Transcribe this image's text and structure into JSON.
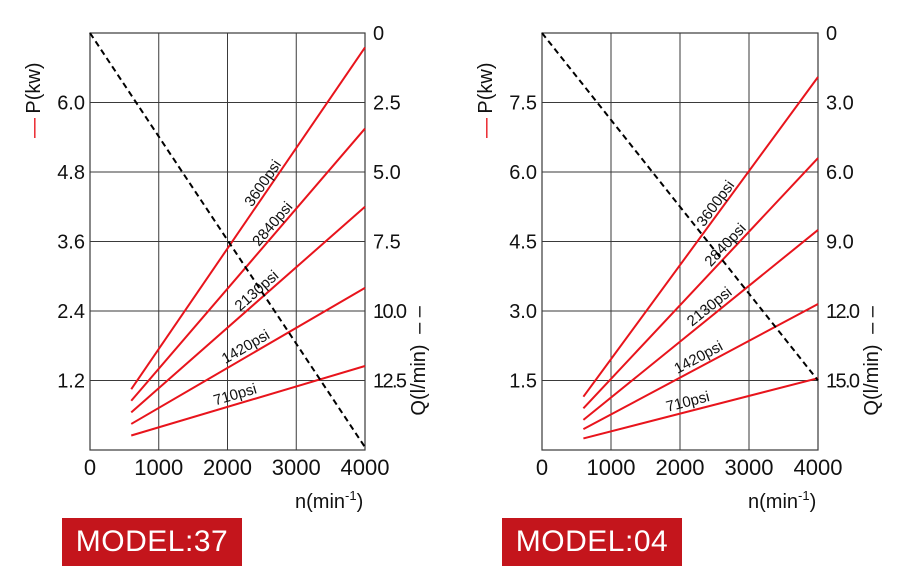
{
  "charts": [
    {
      "model_label": "MODEL:37",
      "chart_data": {
        "type": "line",
        "xlabel_base": "n(min",
        "xlabel_sup": "-1",
        "xlabel_end": ")",
        "ylabel_left": "P(kw)",
        "ylabel_left_marker": "—",
        "ylabel_right": "Q(l/min)",
        "ylabel_right_marker": "– –",
        "xlim": [
          0,
          4000
        ],
        "ylim_left": [
          0,
          7.2
        ],
        "ylim_right": [
          0,
          15
        ],
        "right_axis_inverted": true,
        "x_ticks": [
          "0",
          "1000",
          "2000",
          "3000",
          "4000"
        ],
        "y_left_ticks": [
          {
            "value": 1.2,
            "label": "1.2"
          },
          {
            "value": 2.4,
            "label": "2.4"
          },
          {
            "value": 3.6,
            "label": "3.6"
          },
          {
            "value": 4.8,
            "label": "4.8"
          },
          {
            "value": 6.0,
            "label": "6.0"
          }
        ],
        "y_right_ticks": [
          {
            "value": 0,
            "label": "0"
          },
          {
            "value": 2.5,
            "label": "2.5"
          },
          {
            "value": 5.0,
            "label": "5.0"
          },
          {
            "value": 7.5,
            "label": "7.5"
          },
          {
            "value": 10.0,
            "label": "10.0"
          },
          {
            "value": 12.5,
            "label": "12.5"
          }
        ],
        "grid": true,
        "power_series": [
          {
            "name": "3600psi",
            "x": [
              600,
              4000
            ],
            "y": [
              1.05,
              6.95
            ]
          },
          {
            "name": "2840psi",
            "x": [
              600,
              4000
            ],
            "y": [
              0.85,
              5.55
            ]
          },
          {
            "name": "2130psi",
            "x": [
              600,
              4000
            ],
            "y": [
              0.65,
              4.2
            ]
          },
          {
            "name": "1420psi",
            "x": [
              600,
              4000
            ],
            "y": [
              0.45,
              2.8
            ]
          },
          {
            "name": "710psi",
            "x": [
              600,
              4000
            ],
            "y": [
              0.25,
              1.45
            ]
          }
        ],
        "flow_series": {
          "x": [
            0,
            4000
          ],
          "q": [
            0,
            14.9
          ]
        },
        "colors": {
          "power": "#e8141c",
          "flow": "#000000",
          "grid": "#3a3a3a"
        }
      }
    },
    {
      "model_label": "MODEL:04",
      "chart_data": {
        "type": "line",
        "xlabel_base": "n(min",
        "xlabel_sup": "-1",
        "xlabel_end": ")",
        "ylabel_left": "P(kw)",
        "ylabel_left_marker": "—",
        "ylabel_right": "Q(l/min)",
        "ylabel_right_marker": "– –",
        "xlim": [
          0,
          4000
        ],
        "ylim_left": [
          0,
          9.0
        ],
        "ylim_right": [
          0,
          18
        ],
        "right_axis_inverted": true,
        "x_ticks": [
          "0",
          "1000",
          "2000",
          "3000",
          "4000"
        ],
        "y_left_ticks": [
          {
            "value": 1.5,
            "label": "1.5"
          },
          {
            "value": 3.0,
            "label": "3.0"
          },
          {
            "value": 4.5,
            "label": "4.5"
          },
          {
            "value": 6.0,
            "label": "6.0"
          },
          {
            "value": 7.5,
            "label": "7.5"
          }
        ],
        "y_right_ticks": [
          {
            "value": 0,
            "label": "0"
          },
          {
            "value": 3.0,
            "label": "3.0"
          },
          {
            "value": 6.0,
            "label": "6.0"
          },
          {
            "value": 9.0,
            "label": "9.0"
          },
          {
            "value": 12.0,
            "label": "12.0"
          },
          {
            "value": 15.0,
            "label": "15.0"
          }
        ],
        "grid": true,
        "power_series": [
          {
            "name": "3600psi",
            "x": [
              600,
              4000
            ],
            "y": [
              1.15,
              8.05
            ]
          },
          {
            "name": "2840psi",
            "x": [
              600,
              4000
            ],
            "y": [
              0.9,
              6.3
            ]
          },
          {
            "name": "2130psi",
            "x": [
              600,
              4000
            ],
            "y": [
              0.65,
              4.75
            ]
          },
          {
            "name": "1420psi",
            "x": [
              600,
              4000
            ],
            "y": [
              0.45,
              3.15
            ]
          },
          {
            "name": "710psi",
            "x": [
              600,
              4000
            ],
            "y": [
              0.25,
              1.55
            ]
          }
        ],
        "flow_series": {
          "x": [
            0,
            4000
          ],
          "q": [
            0,
            15.0
          ]
        },
        "colors": {
          "power": "#e8141c",
          "flow": "#000000",
          "grid": "#3a3a3a"
        }
      }
    }
  ]
}
